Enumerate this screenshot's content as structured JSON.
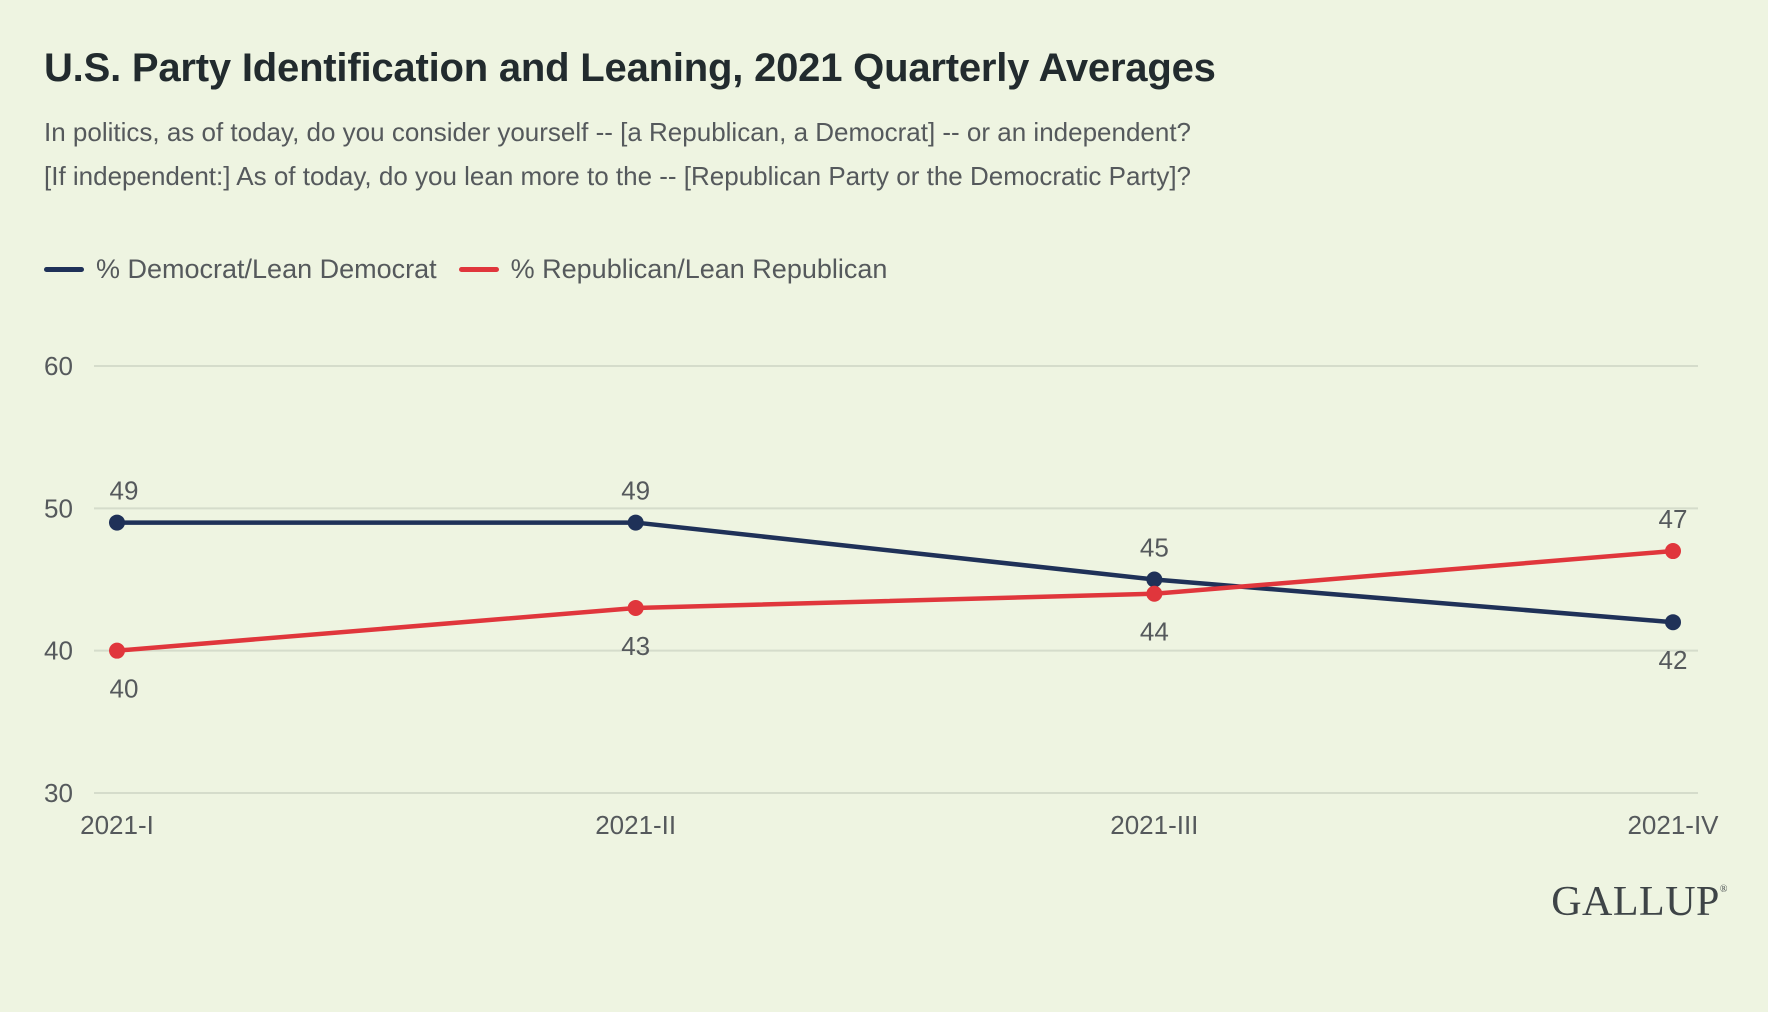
{
  "header": {
    "title": "U.S. Party Identification and Leaning, 2021 Quarterly Averages",
    "subtitle_line1": "In politics, as of today, do you consider yourself -- [a Republican, a Democrat] -- or an independent?",
    "subtitle_line2": "[If independent:] As of today, do you lean more to the -- [Republican Party or the Democratic Party]?"
  },
  "logo": {
    "text": "GALLUP",
    "mark": "®"
  },
  "colors": {
    "democrat": "#1f3158",
    "republican": "#e0363c",
    "grid": "#d5dccb",
    "text": "#55595c"
  },
  "chart_data": {
    "type": "line",
    "categories": [
      "2021-I",
      "2021-II",
      "2021-III",
      "2021-IV"
    ],
    "series": [
      {
        "name": "% Democrat/Lean Democrat",
        "values": [
          49,
          49,
          45,
          42
        ],
        "color": "#1f3158",
        "label_positions": [
          "above",
          "above",
          "above",
          "below"
        ]
      },
      {
        "name": "% Republican/Lean Republican",
        "values": [
          40,
          43,
          44,
          47
        ],
        "color": "#e0363c",
        "label_positions": [
          "below",
          "below",
          "below",
          "above"
        ]
      }
    ],
    "yticks": [
      30,
      40,
      50,
      60
    ],
    "ylim": [
      30,
      60
    ],
    "grid": true,
    "legend": "top-left"
  }
}
